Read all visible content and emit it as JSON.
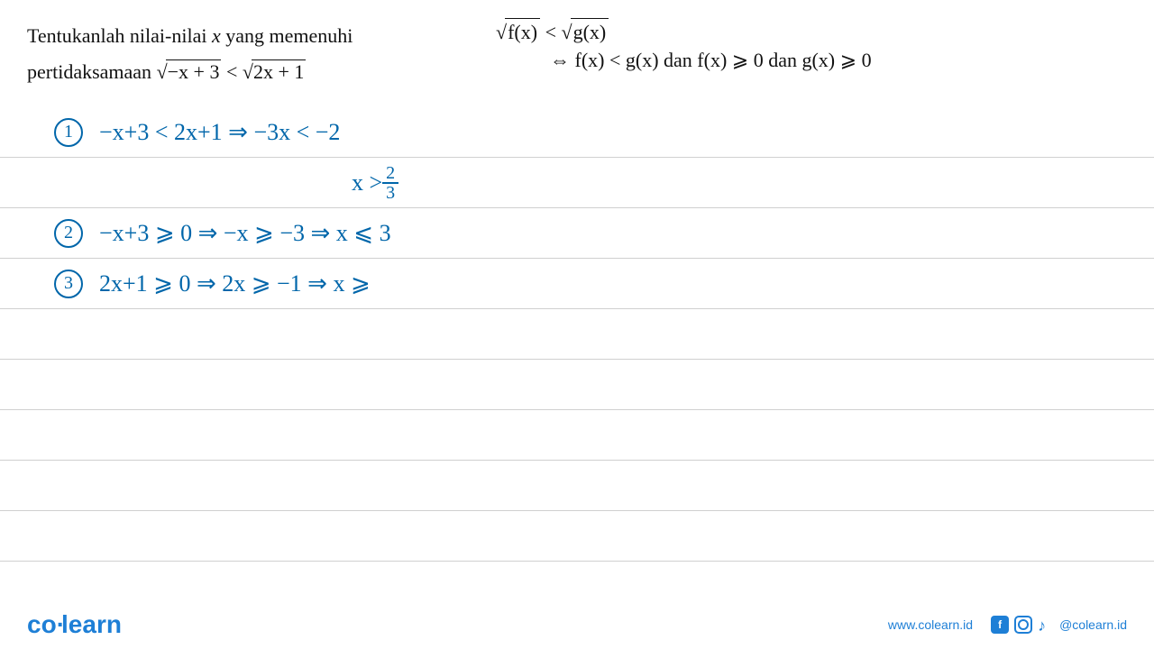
{
  "problem": {
    "line1_prefix": "Tentukanlah nilai-nilai ",
    "line1_var": "x",
    "line1_suffix": " yang memenuhi",
    "line2_prefix": "pertidaksamaan ",
    "sqrt_left": "−x + 3",
    "ineq": " < ",
    "sqrt_right": "2x + 1",
    "text_color": "#111111",
    "font_size": 22
  },
  "rule": {
    "line1_left": "f(x)",
    "line1_mid": " < ",
    "line1_right": "g(x)",
    "line2": "⇔  f(x) < g(x)  dan  f(x) ⩾ 0  dan g(x) ⩾ 0",
    "color": "#111111"
  },
  "work": {
    "color": "#0066aa",
    "font_size": 26,
    "line_height": 56,
    "rule_color": "#d0d0d0",
    "steps": [
      {
        "num": "1",
        "text": "−x+3 < 2x+1  ⇒  −3x < −2"
      },
      {
        "num": "",
        "text": "x  >  ",
        "frac": {
          "num": "2",
          "den": "3"
        },
        "indent": true
      },
      {
        "num": "2",
        "text": "−x+3 ⩾ 0   ⇒  −x  ⩾ −3    ⇒   x ⩽ 3"
      },
      {
        "num": "3",
        "text": "2x+1 ⩾ 0    ⇒   2x ⩾ −1   ⇒   x ⩾"
      }
    ]
  },
  "footer": {
    "logo_text_1": "co",
    "logo_text_2": "learn",
    "url": "www.colearn.id",
    "handle": "@colearn.id",
    "brand_color": "#1e7fd6"
  }
}
